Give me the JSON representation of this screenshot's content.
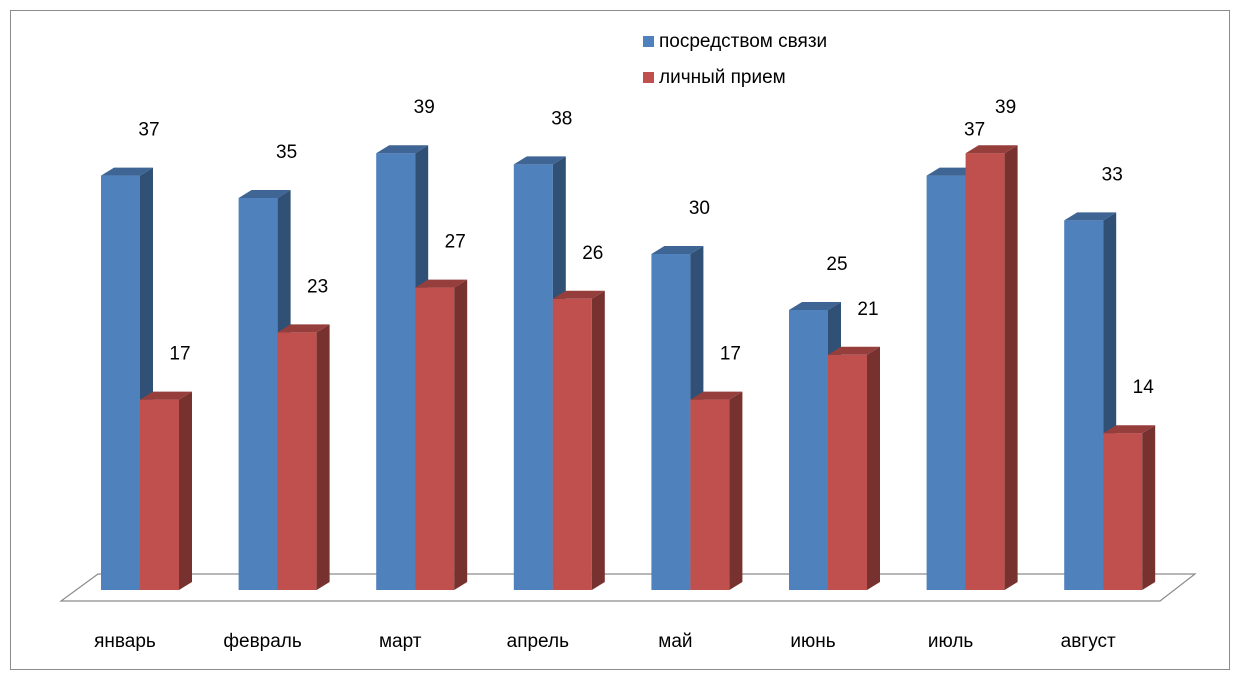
{
  "chart_data": {
    "type": "bar",
    "title": "",
    "xlabel": "",
    "ylabel": "",
    "ylim": [
      0,
      39
    ],
    "grid": false,
    "legend_position": "top-right",
    "categories": [
      "январь",
      "февраль",
      "март",
      "апрель",
      "май",
      "июнь",
      "июль",
      "август"
    ],
    "series": [
      {
        "name": "посредством связи",
        "values": [
          37,
          35,
          39,
          38,
          30,
          25,
          37,
          33
        ],
        "color": "#4f81bd"
      },
      {
        "name": "личный прием",
        "values": [
          17,
          23,
          27,
          26,
          17,
          21,
          39,
          14
        ],
        "color": "#c0504d"
      }
    ]
  }
}
